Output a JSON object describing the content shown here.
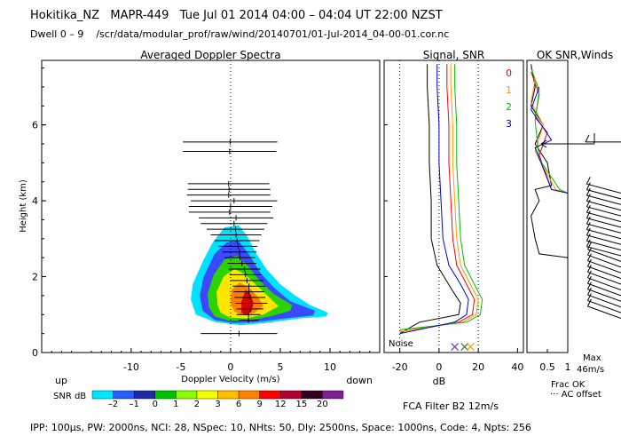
{
  "header": {
    "station": "Hokitika_NZ",
    "instrument": "MAPR-449",
    "datetime": "Tue Jul 01 2014 04:00 – 04:04 UT 22:00 NZST",
    "dwell": "Dwell  0 –  9",
    "path": "/scr/data/modular_prof/raw/wind/20140701/01-Jul-2014_04-00-01.cor.nc"
  },
  "chart_data": [
    {
      "type": "heatmap",
      "title": "Averaged Doppler Spectra",
      "xlabel": "Doppler Velocity (m/s)",
      "ylabel": "Height (km)",
      "xlim": [
        -19,
        15
      ],
      "ylim": [
        0,
        7.7
      ],
      "xticks": [
        -10,
        -5,
        0,
        5,
        10
      ],
      "yticks": [
        0,
        2,
        4,
        6
      ],
      "left_note": "up",
      "right_note": "down",
      "contours": [
        {
          "level": -2,
          "color": "#00e0ff",
          "points": [
            [
              -3.5,
              1.0
            ],
            [
              -4.0,
              1.4
            ],
            [
              -3.8,
              1.8
            ],
            [
              -2.8,
              2.4
            ],
            [
              -1.8,
              2.9
            ],
            [
              -0.6,
              3.3
            ],
            [
              0.8,
              3.35
            ],
            [
              1.6,
              3.1
            ],
            [
              2.6,
              2.6
            ],
            [
              3.6,
              2.2
            ],
            [
              5.0,
              1.8
            ],
            [
              6.5,
              1.5
            ],
            [
              8.0,
              1.25
            ],
            [
              9.8,
              1.05
            ],
            [
              9.6,
              0.95
            ],
            [
              7.0,
              0.9
            ],
            [
              3.5,
              0.78
            ],
            [
              1.0,
              0.72
            ],
            [
              -1.5,
              0.8
            ]
          ]
        },
        {
          "level": -1,
          "color": "#3b49ff",
          "points": [
            [
              -2.8,
              1.1
            ],
            [
              -3.1,
              1.5
            ],
            [
              -2.7,
              2.0
            ],
            [
              -1.6,
              2.6
            ],
            [
              -0.4,
              2.9
            ],
            [
              0.8,
              2.95
            ],
            [
              1.8,
              2.6
            ],
            [
              3.0,
              2.1
            ],
            [
              4.4,
              1.7
            ],
            [
              6.0,
              1.35
            ],
            [
              8.5,
              1.1
            ],
            [
              8.3,
              0.98
            ],
            [
              5.5,
              0.9
            ],
            [
              2.5,
              0.8
            ],
            [
              0.3,
              0.78
            ],
            [
              -1.6,
              0.86
            ]
          ]
        },
        {
          "level": 0,
          "color": "#2bd400",
          "points": [
            [
              -2.2,
              1.2
            ],
            [
              -2.3,
              1.55
            ],
            [
              -1.7,
              2.05
            ],
            [
              -0.6,
              2.45
            ],
            [
              0.6,
              2.55
            ],
            [
              1.7,
              2.3
            ],
            [
              2.9,
              1.9
            ],
            [
              4.3,
              1.55
            ],
            [
              6.2,
              1.25
            ],
            [
              6.0,
              1.1
            ],
            [
              4.0,
              0.95
            ],
            [
              1.8,
              0.85
            ],
            [
              -0.2,
              0.84
            ],
            [
              -1.6,
              0.95
            ]
          ]
        },
        {
          "level": 3,
          "color": "#ffe600",
          "points": [
            [
              -1.3,
              1.25
            ],
            [
              -1.4,
              1.6
            ],
            [
              -0.7,
              2.0
            ],
            [
              0.4,
              2.2
            ],
            [
              1.5,
              2.05
            ],
            [
              2.7,
              1.75
            ],
            [
              3.9,
              1.45
            ],
            [
              4.8,
              1.22
            ],
            [
              3.3,
              1.0
            ],
            [
              1.6,
              0.9
            ],
            [
              0.0,
              0.92
            ],
            [
              -1.0,
              1.05
            ]
          ]
        },
        {
          "level": 9,
          "color": "#ff8000",
          "points": [
            [
              0.0,
              1.3
            ],
            [
              0.1,
              1.65
            ],
            [
              0.9,
              1.85
            ],
            [
              1.9,
              1.7
            ],
            [
              2.8,
              1.45
            ],
            [
              3.3,
              1.22
            ],
            [
              2.4,
              1.05
            ],
            [
              1.2,
              0.98
            ],
            [
              0.4,
              1.08
            ]
          ]
        },
        {
          "level": 15,
          "color": "#e00000",
          "points": [
            [
              1.1,
              1.05
            ],
            [
              1.1,
              1.35
            ],
            [
              1.5,
              1.65
            ],
            [
              2.0,
              1.55
            ],
            [
              2.3,
              1.3
            ],
            [
              2.1,
              1.08
            ],
            [
              1.6,
              0.98
            ]
          ]
        }
      ],
      "profile_ranges": [
        {
          "height": 5.55,
          "min": -4.8,
          "max": 4.7
        },
        {
          "height": 5.3,
          "min": -4.8,
          "max": 4.6
        },
        {
          "height": 4.45,
          "min": -4.3,
          "max": 3.9
        },
        {
          "height": 4.3,
          "min": -4.3,
          "max": 4.0
        },
        {
          "height": 4.15,
          "min": -4.4,
          "max": 4.0
        },
        {
          "height": 4.0,
          "min": -4.0,
          "max": 4.7
        },
        {
          "height": 3.85,
          "min": -4.2,
          "max": 4.2
        },
        {
          "height": 3.7,
          "min": -4.2,
          "max": 4.0
        },
        {
          "height": 3.55,
          "min": -3.2,
          "max": 4.3
        },
        {
          "height": 3.4,
          "min": -3.0,
          "max": 3.7
        },
        {
          "height": 3.25,
          "min": -2.4,
          "max": 3.4
        },
        {
          "height": 3.1,
          "min": -2.0,
          "max": 3.1
        },
        {
          "height": 2.95,
          "min": -1.6,
          "max": 2.9
        },
        {
          "height": 2.8,
          "min": -1.2,
          "max": 2.7
        },
        {
          "height": 2.65,
          "min": -0.8,
          "max": 2.6
        },
        {
          "height": 2.5,
          "min": -0.6,
          "max": 2.5
        },
        {
          "height": 2.35,
          "min": -0.3,
          "max": 2.6
        },
        {
          "height": 2.2,
          "min": -0.2,
          "max": 3.0
        },
        {
          "height": 2.05,
          "min": -0.1,
          "max": 3.1
        },
        {
          "height": 1.9,
          "min": 0.0,
          "max": 3.3
        },
        {
          "height": 1.75,
          "min": 0.2,
          "max": 3.5
        },
        {
          "height": 1.6,
          "min": 0.3,
          "max": 3.4
        },
        {
          "height": 1.45,
          "min": 0.4,
          "max": 3.5
        },
        {
          "height": 1.3,
          "min": 0.5,
          "max": 3.7
        },
        {
          "height": 1.15,
          "min": 0.6,
          "max": 3.3
        },
        {
          "height": 1.0,
          "min": 0.6,
          "max": 3.0
        },
        {
          "height": 0.85,
          "min": 0.8,
          "max": 2.8
        },
        {
          "height": 0.5,
          "min": -3.0,
          "max": 4.7
        }
      ],
      "colorbar": {
        "label": "SNR dB",
        "colors": [
          "#00e5ff",
          "#2a5cff",
          "#1d2aa8",
          "#00c000",
          "#86ff00",
          "#f5ff00",
          "#ffbf00",
          "#ff7f00",
          "#ff0000",
          "#b00030",
          "#300020",
          "#7a2090"
        ],
        "ticks": [
          "–2",
          "–1",
          "0",
          "1",
          "2",
          "3",
          "6",
          "9",
          "12",
          "15",
          "20"
        ]
      }
    },
    {
      "type": "line",
      "title": "Signal, SNR",
      "xlabel": "dB",
      "xlim": [
        -28,
        43
      ],
      "ylim": [
        0,
        7.7
      ],
      "xticks": [
        -20,
        0,
        20,
        40
      ],
      "gridlines": [
        -20,
        0,
        20
      ],
      "noise_label": "Noise",
      "series": [
        {
          "name": "signal",
          "color": "#000000",
          "points": [
            [
              -20,
              0.5
            ],
            [
              -10,
              0.8
            ],
            [
              10,
              1.0
            ],
            [
              11,
              1.3
            ],
            [
              6,
              1.7
            ],
            [
              -1,
              2.3
            ],
            [
              -4,
              3.0
            ],
            [
              -4,
              4.0
            ],
            [
              -5,
              5.0
            ],
            [
              -5,
              6.0
            ],
            [
              -6,
              7.0
            ],
            [
              -6,
              7.6
            ]
          ]
        },
        {
          "name": "0",
          "color": "#ff0000",
          "points": [
            [
              -20,
              0.55
            ],
            [
              10,
              0.8
            ],
            [
              17,
              1.0
            ],
            [
              18,
              1.4
            ],
            [
              14,
              1.8
            ],
            [
              9,
              2.3
            ],
            [
              7,
              3.0
            ],
            [
              6,
              4.0
            ],
            [
              5,
              5.0
            ],
            [
              5,
              6.0
            ],
            [
              4,
              7.0
            ],
            [
              4,
              7.6
            ]
          ]
        },
        {
          "name": "1",
          "color": "#ff9900",
          "points": [
            [
              -20,
              0.55
            ],
            [
              12,
              0.8
            ],
            [
              19,
              1.0
            ],
            [
              20,
              1.4
            ],
            [
              16,
              1.8
            ],
            [
              11,
              2.3
            ],
            [
              9,
              3.0
            ],
            [
              8,
              4.0
            ],
            [
              7,
              5.0
            ],
            [
              7,
              6.0
            ],
            [
              6,
              7.0
            ],
            [
              6,
              7.6
            ]
          ]
        },
        {
          "name": "2",
          "color": "#00c000",
          "points": [
            [
              -20,
              0.6
            ],
            [
              14,
              0.8
            ],
            [
              21,
              1.0
            ],
            [
              22,
              1.4
            ],
            [
              18,
              1.8
            ],
            [
              13,
              2.3
            ],
            [
              11,
              3.0
            ],
            [
              10,
              4.0
            ],
            [
              9,
              5.0
            ],
            [
              9,
              6.0
            ],
            [
              8,
              7.0
            ],
            [
              8,
              7.6
            ]
          ]
        },
        {
          "name": "3",
          "color": "#0000dd",
          "points": [
            [
              -20,
              0.5
            ],
            [
              8,
              0.8
            ],
            [
              14,
              1.0
            ],
            [
              15,
              1.4
            ],
            [
              11,
              1.8
            ],
            [
              5,
              2.3
            ],
            [
              2,
              3.0
            ],
            [
              1,
              4.0
            ],
            [
              0,
              5.0
            ],
            [
              0,
              6.0
            ],
            [
              -1,
              7.0
            ],
            [
              -1,
              7.6
            ]
          ]
        }
      ],
      "noise_markers": [
        {
          "x": 8,
          "y": 0.15,
          "color": "#6a3cc8"
        },
        {
          "x": 13,
          "y": 0.15,
          "color": "#2e7d32"
        },
        {
          "x": 16,
          "y": 0.15,
          "color": "#ff9900"
        }
      ]
    },
    {
      "type": "line",
      "title": "OK SNR,Winds",
      "xlim": [
        0,
        1
      ],
      "ylim": [
        0,
        7.7
      ],
      "xtick_labels": [
        "0.5",
        "1"
      ],
      "legend": [
        "0",
        "1",
        "2",
        "3"
      ],
      "legend_colors": [
        "#ff0000",
        "#ff9900",
        "#00c000",
        "#0000dd"
      ],
      "frac_ok_label": "Frac OK",
      "ac_offset_label": "··· AC offset",
      "max_label": "Max",
      "max_value": "46m/s",
      "series": [
        {
          "name": "frac_ok",
          "color": "#000000",
          "points": [
            [
              1.0,
              0.5
            ],
            [
              1.0,
              2.5
            ],
            [
              0.3,
              2.6
            ],
            [
              0.2,
              3.0
            ],
            [
              0.1,
              3.6
            ],
            [
              0.3,
              4.0
            ],
            [
              0.2,
              4.3
            ],
            [
              0.6,
              4.4
            ],
            [
              0.5,
              5.0
            ],
            [
              0.2,
              5.5
            ],
            [
              0.4,
              6.0
            ],
            [
              0.1,
              6.5
            ],
            [
              0.2,
              7.0
            ],
            [
              0.1,
              7.6
            ]
          ]
        },
        {
          "name": "0",
          "color": "#ff0000",
          "points": [
            [
              1.0,
              0.5
            ],
            [
              1.0,
              4.2
            ],
            [
              0.6,
              4.3
            ],
            [
              0.3,
              5.2
            ],
            [
              0.5,
              5.8
            ],
            [
              0.2,
              6.2
            ],
            [
              0.3,
              6.8
            ],
            [
              0.1,
              7.4
            ]
          ]
        },
        {
          "name": "1",
          "color": "#ff9900",
          "points": [
            [
              1.0,
              0.5
            ],
            [
              1.0,
              4.2
            ],
            [
              0.7,
              4.3
            ],
            [
              0.2,
              5.3
            ],
            [
              0.4,
              6.0
            ],
            [
              0.1,
              6.6
            ],
            [
              0.2,
              7.2
            ]
          ]
        },
        {
          "name": "2",
          "color": "#00c000",
          "points": [
            [
              1.0,
              0.5
            ],
            [
              1.0,
              4.2
            ],
            [
              0.8,
              4.3
            ],
            [
              0.3,
              5.1
            ],
            [
              0.2,
              6.1
            ],
            [
              0.3,
              6.9
            ],
            [
              0.1,
              7.5
            ]
          ]
        },
        {
          "name": "3",
          "color": "#0000dd",
          "points": [
            [
              1.0,
              0.5
            ],
            [
              1.0,
              4.2
            ],
            [
              0.6,
              4.3
            ],
            [
              0.2,
              5.4
            ],
            [
              0.6,
              5.6
            ],
            [
              0.1,
              6.4
            ],
            [
              0.3,
              7.0
            ]
          ]
        }
      ],
      "wind_barb_heights": [
        0.9,
        1.05,
        1.2,
        1.35,
        1.5,
        1.65,
        1.8,
        1.95,
        2.1,
        2.25,
        2.4,
        2.55,
        2.7,
        2.85,
        3.0,
        3.15,
        3.3,
        3.45,
        3.6,
        3.75,
        3.9,
        4.05,
        4.2,
        5.55
      ]
    }
  ],
  "footer": {
    "fca": "FCA Filter B2 12m/s",
    "params": "IPP: 100µs,  PW: 2000ns,  NCI:  28,  NSpec: 10,  NHts: 50,  Dly: 2500ns,  Space: 1000ns,  Code: 4,  Npts: 256"
  }
}
